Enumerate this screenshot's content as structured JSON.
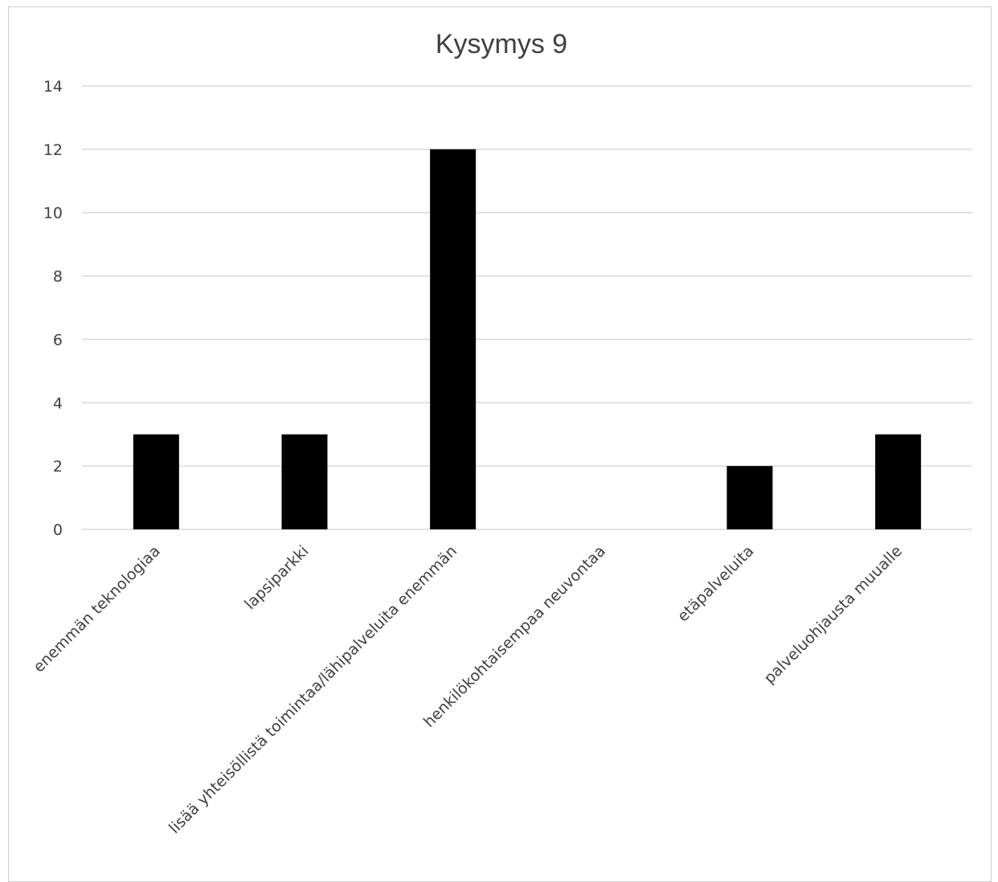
{
  "chart_data": {
    "type": "bar",
    "title": "Kysymys 9",
    "categories": [
      "enemmän teknologiaa",
      "lapsiparkki",
      "lisää yhteisöllistä toimintaa/lähipalveluita enemmän",
      "henkilökohtaisempaa neuvontaa",
      "etäpalveluita",
      "palveluohjausta muualle"
    ],
    "values": [
      3,
      3,
      12,
      0,
      2,
      3
    ],
    "ylim": [
      0,
      14
    ],
    "yticks": [
      "0",
      "2",
      "4",
      "6",
      "8",
      "10",
      "12",
      "14"
    ],
    "xlabel": "",
    "ylabel": "",
    "grid": true,
    "legend": "none",
    "bar_color": "#000000"
  }
}
